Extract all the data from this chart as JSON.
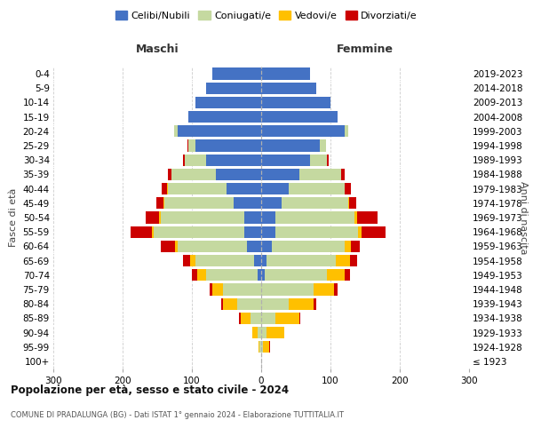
{
  "age_groups": [
    "100+",
    "95-99",
    "90-94",
    "85-89",
    "80-84",
    "75-79",
    "70-74",
    "65-69",
    "60-64",
    "55-59",
    "50-54",
    "45-49",
    "40-44",
    "35-39",
    "30-34",
    "25-29",
    "20-24",
    "15-19",
    "10-14",
    "5-9",
    "0-4"
  ],
  "birth_years": [
    "≤ 1923",
    "1924-1928",
    "1929-1933",
    "1934-1938",
    "1939-1943",
    "1944-1948",
    "1949-1953",
    "1954-1958",
    "1959-1963",
    "1964-1968",
    "1969-1973",
    "1974-1978",
    "1979-1983",
    "1984-1988",
    "1989-1993",
    "1994-1998",
    "1999-2003",
    "2004-2008",
    "2009-2013",
    "2014-2018",
    "2019-2023"
  ],
  "males": {
    "celibi": [
      0,
      0,
      0,
      0,
      0,
      0,
      5,
      10,
      20,
      25,
      25,
      40,
      50,
      65,
      80,
      95,
      120,
      105,
      95,
      80,
      70
    ],
    "coniugati": [
      0,
      2,
      5,
      15,
      35,
      55,
      75,
      85,
      100,
      130,
      120,
      100,
      85,
      65,
      30,
      10,
      5,
      0,
      0,
      0,
      0
    ],
    "vedovi": [
      0,
      2,
      8,
      15,
      20,
      15,
      12,
      8,
      5,
      3,
      2,
      1,
      1,
      0,
      0,
      0,
      0,
      0,
      0,
      0,
      0
    ],
    "divorziati": [
      0,
      0,
      0,
      2,
      3,
      5,
      8,
      10,
      20,
      30,
      20,
      10,
      8,
      5,
      3,
      2,
      0,
      0,
      0,
      0,
      0
    ]
  },
  "females": {
    "nubili": [
      0,
      0,
      0,
      0,
      0,
      0,
      5,
      8,
      15,
      20,
      20,
      30,
      40,
      55,
      70,
      85,
      120,
      110,
      100,
      80,
      70
    ],
    "coniugate": [
      0,
      3,
      8,
      20,
      40,
      75,
      90,
      100,
      105,
      120,
      115,
      95,
      80,
      60,
      25,
      8,
      5,
      0,
      0,
      0,
      0
    ],
    "vedove": [
      0,
      8,
      25,
      35,
      35,
      30,
      25,
      20,
      10,
      5,
      3,
      2,
      1,
      0,
      0,
      0,
      0,
      0,
      0,
      0,
      0
    ],
    "divorziate": [
      0,
      2,
      0,
      2,
      5,
      5,
      8,
      10,
      12,
      35,
      30,
      10,
      8,
      5,
      3,
      0,
      0,
      0,
      0,
      0,
      0
    ]
  },
  "colors": {
    "celibi": "#4472c4",
    "coniugati": "#c5d9a0",
    "vedovi": "#ffc000",
    "divorziati": "#cc0000"
  },
  "title": "Popolazione per età, sesso e stato civile - 2024",
  "subtitle": "COMUNE DI PRADALUNGA (BG) - Dati ISTAT 1° gennaio 2024 - Elaborazione TUTTITALIA.IT",
  "label_maschi": "Maschi",
  "label_femmine": "Femmine",
  "ylabel_left": "Fasce di età",
  "ylabel_right": "Anni di nascita",
  "xlim": 300,
  "background_color": "#ffffff",
  "grid_color": "#cccccc",
  "legend_labels": [
    "Celibi/Nubili",
    "Coniugati/e",
    "Vedovi/e",
    "Divorziati/e"
  ]
}
